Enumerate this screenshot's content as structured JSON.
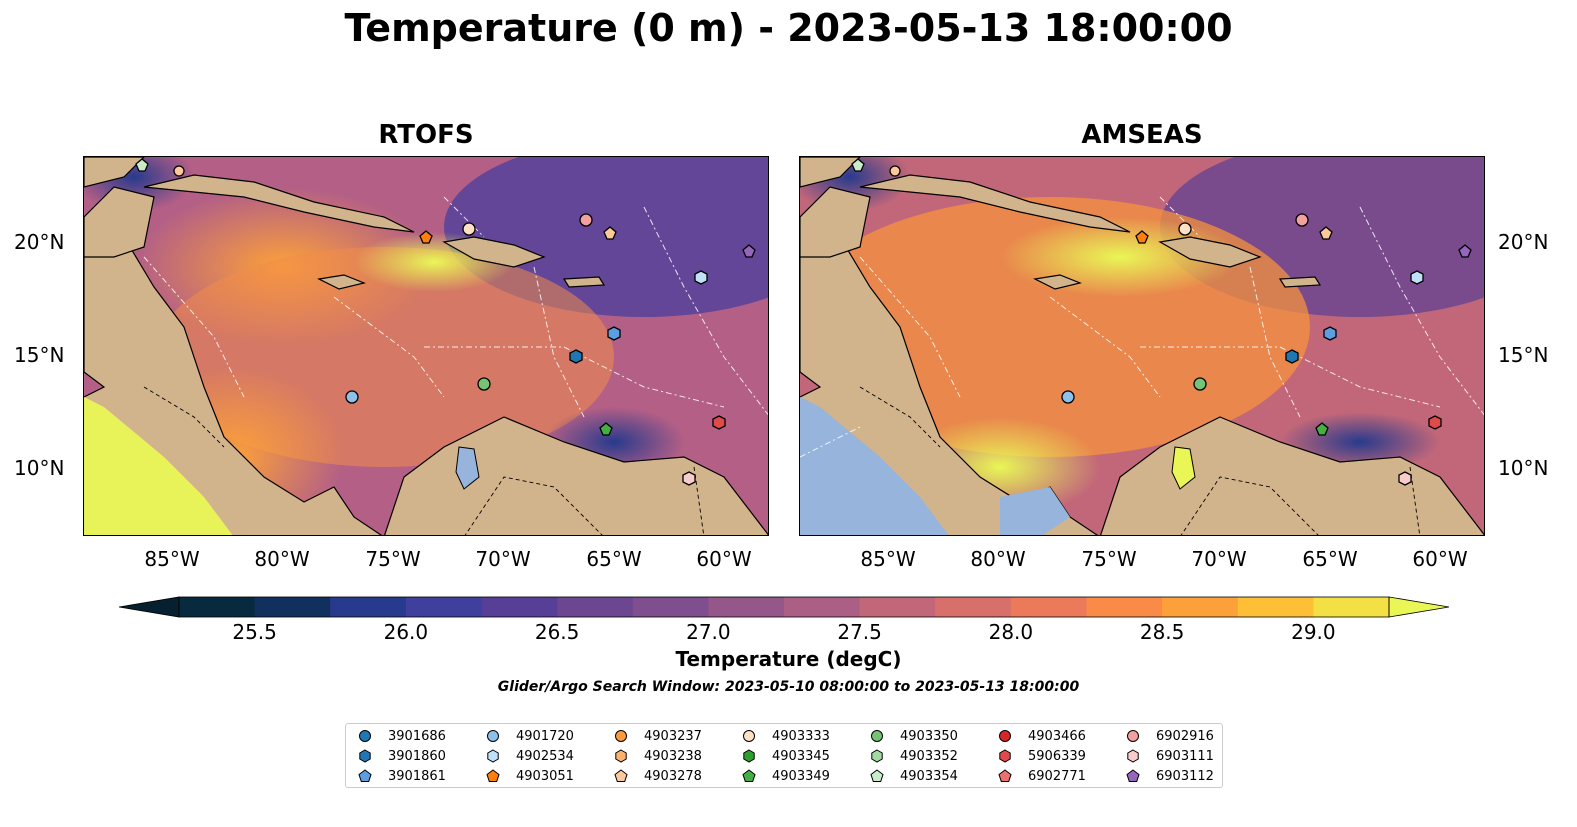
{
  "title": "Temperature (0 m) - 2023-05-13 18:00:00",
  "panels": [
    {
      "title": "RTOFS"
    },
    {
      "title": "AMSEAS"
    }
  ],
  "lon_ticks": [
    "85°W",
    "80°W",
    "75°W",
    "70°W",
    "65°W",
    "60°W"
  ],
  "lat_ticks": [
    "20°N",
    "15°N",
    "10°N"
  ],
  "colorbar": {
    "label": "Temperature (degC)",
    "min": 25.25,
    "max": 29.25,
    "ticks": [
      "25.5",
      "26.0",
      "26.5",
      "27.0",
      "27.5",
      "28.0",
      "28.5",
      "29.0"
    ],
    "colors": [
      "#082a3f",
      "#11305e",
      "#283a8d",
      "#3f3f9e",
      "#573f98",
      "#6c4691",
      "#7f4e8e",
      "#955789",
      "#ab5f85",
      "#c26779",
      "#d7706b",
      "#ec7a5a",
      "#f98a47",
      "#fca139",
      "#fcbf35",
      "#f2e044"
    ],
    "extend_low_color": "#06202f",
    "extend_high_color": "#e9f656"
  },
  "search_window": "Glider/Argo Search Window: 2023-05-10 08:00:00 to 2023-05-13 18:00:00",
  "colors": {
    "land": "#d2b48c",
    "lake": "#96b4dc",
    "ocean_warm": "#f5923e",
    "ocean_mid": "#b35f86",
    "ocean_cool": "#5a449a"
  },
  "legend": [
    {
      "label": "3901686",
      "marker": "circle",
      "color": "#1f77b4"
    },
    {
      "label": "3901860",
      "marker": "hexagon",
      "color": "#1f77b4"
    },
    {
      "label": "3901861",
      "marker": "pentagon",
      "color": "#5d9ee0"
    },
    {
      "label": "4901720",
      "marker": "circle",
      "color": "#8ec1ea"
    },
    {
      "label": "4902534",
      "marker": "hexagon",
      "color": "#bfe0f7"
    },
    {
      "label": "4903051",
      "marker": "pentagon",
      "color": "#ff7f0e"
    },
    {
      "label": "4903237",
      "marker": "circle",
      "color": "#fd9a3d"
    },
    {
      "label": "4903238",
      "marker": "hexagon",
      "color": "#fdb26e"
    },
    {
      "label": "4903278",
      "marker": "pentagon",
      "color": "#fdc99a"
    },
    {
      "label": "4903333",
      "marker": "circle",
      "color": "#fee0c6"
    },
    {
      "label": "4903345",
      "marker": "hexagon",
      "color": "#2ca02c"
    },
    {
      "label": "4903349",
      "marker": "pentagon",
      "color": "#44b044"
    },
    {
      "label": "4903350",
      "marker": "circle",
      "color": "#74c474"
    },
    {
      "label": "4903352",
      "marker": "hexagon",
      "color": "#a2daa2"
    },
    {
      "label": "4903354",
      "marker": "pentagon",
      "color": "#c9edc9"
    },
    {
      "label": "4903466",
      "marker": "circle",
      "color": "#d62728"
    },
    {
      "label": "5906339",
      "marker": "hexagon",
      "color": "#e04a4a"
    },
    {
      "label": "6902771",
      "marker": "pentagon",
      "color": "#eb7070"
    },
    {
      "label": "6902916",
      "marker": "circle",
      "color": "#f2a0a0"
    },
    {
      "label": "6903111",
      "marker": "hexagon",
      "color": "#f9cccc"
    },
    {
      "label": "6903112",
      "marker": "pentagon",
      "color": "#9467bd"
    }
  ]
}
